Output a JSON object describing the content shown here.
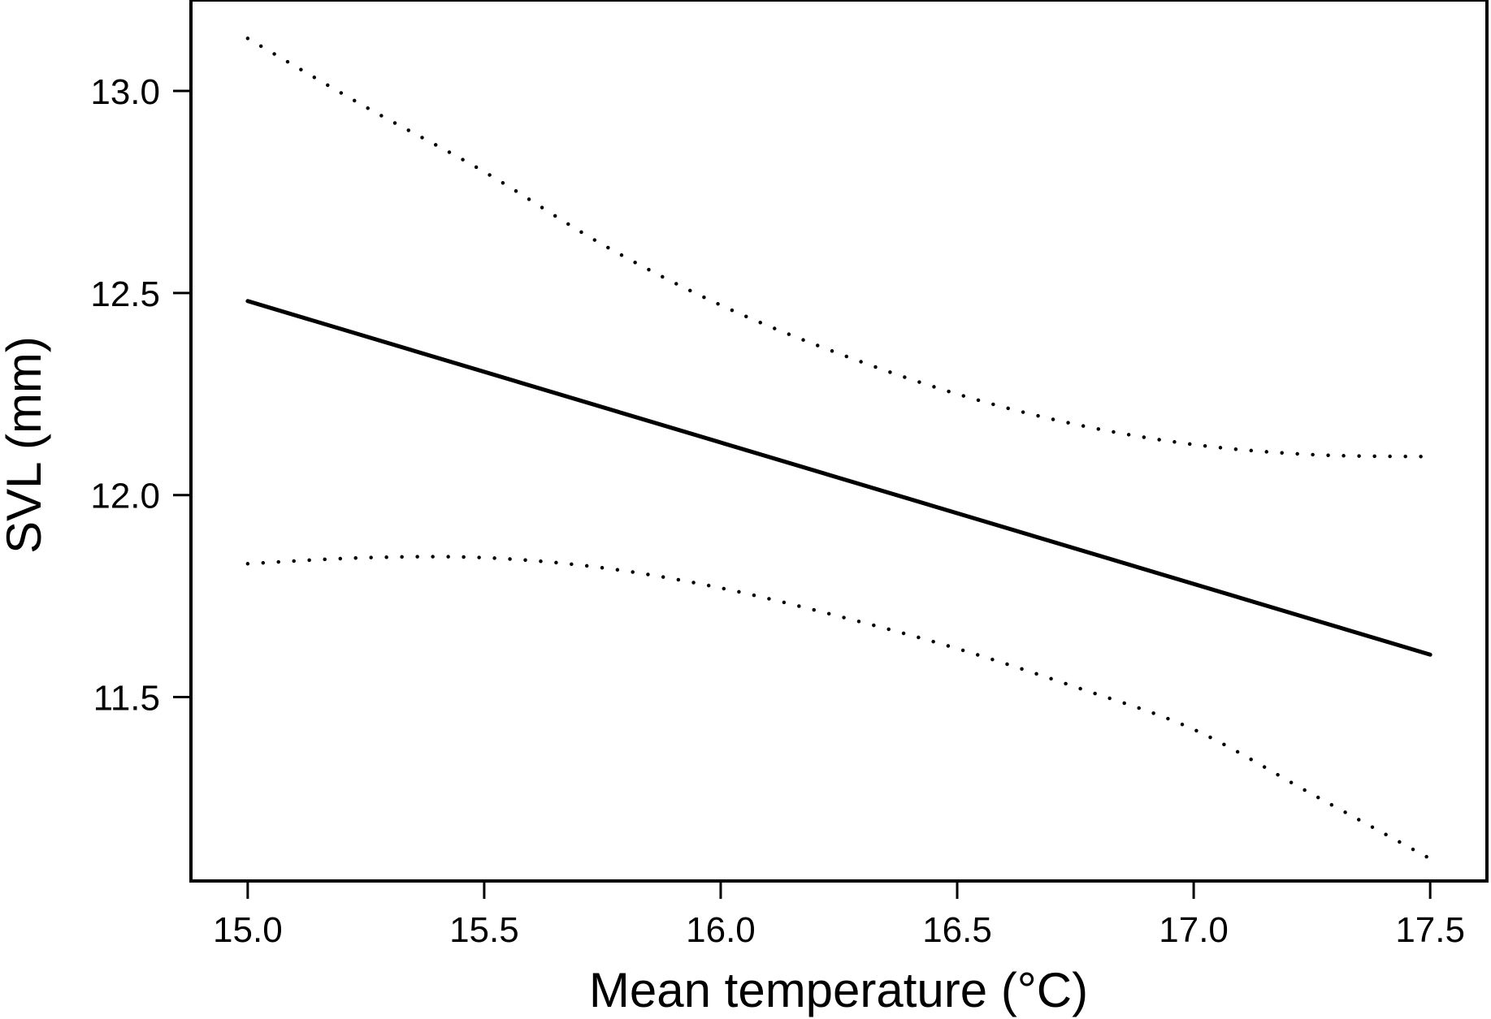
{
  "chart_data": {
    "type": "line",
    "title": "",
    "xlabel": "Mean temperature (°C)",
    "ylabel": "SVL (mm)",
    "xlim": [
      14.88,
      17.62
    ],
    "ylim": [
      11.045,
      13.225
    ],
    "x_ticks": [
      15.0,
      15.5,
      16.0,
      16.5,
      17.0,
      17.5
    ],
    "x_tick_labels": [
      "15.0",
      "15.5",
      "16.0",
      "16.5",
      "17.0",
      "17.5"
    ],
    "y_ticks": [
      11.5,
      12.0,
      12.5,
      13.0
    ],
    "y_tick_labels": [
      "11.5",
      "12.0",
      "12.5",
      "13.0"
    ],
    "grid": false,
    "legend": "none",
    "series": [
      {
        "style": "solid",
        "x": [
          15.0,
          17.5
        ],
        "y": [
          12.48,
          11.605
        ]
      },
      {
        "style": "dotted",
        "x": [
          15.0,
          15.25,
          15.5,
          15.75,
          16.0,
          16.25,
          16.5,
          16.75,
          17.0,
          17.25,
          17.5
        ],
        "y": [
          13.13,
          12.96,
          12.8,
          12.62,
          12.47,
          12.35,
          12.25,
          12.175,
          12.125,
          12.1,
          12.095
        ]
      },
      {
        "style": "dotted",
        "x": [
          15.0,
          15.25,
          15.5,
          15.75,
          16.0,
          16.25,
          16.5,
          16.75,
          17.0,
          17.25,
          17.5
        ],
        "y": [
          11.83,
          11.845,
          11.845,
          11.82,
          11.77,
          11.7,
          11.62,
          11.525,
          11.42,
          11.26,
          11.1
        ]
      }
    ]
  }
}
